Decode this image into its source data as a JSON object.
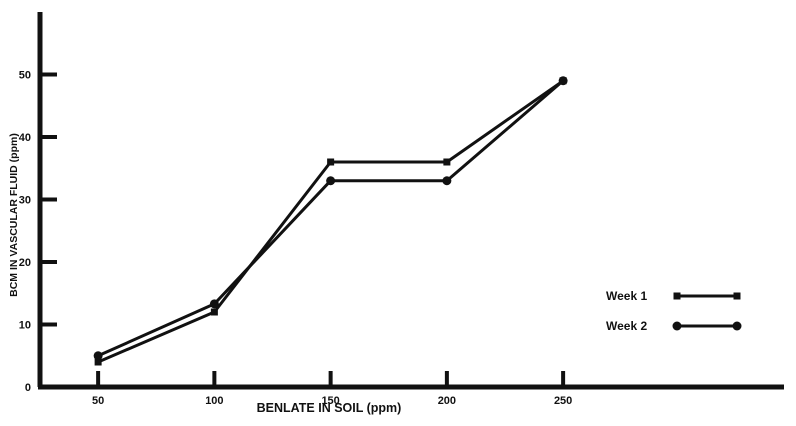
{
  "chart_data": {
    "type": "line",
    "xlabel": "BENLATE IN SOIL (ppm)",
    "ylabel": "BCM IN VASCULAR FLUID (ppm)",
    "x_ticks": [
      "50",
      "100",
      "150",
      "200",
      "250"
    ],
    "y_ticks": [
      "0",
      "10",
      "20",
      "30",
      "40",
      "50"
    ],
    "xlim": [
      25,
      345
    ],
    "ylim": [
      0,
      60
    ],
    "x": [
      50,
      100,
      150,
      200,
      250
    ],
    "series": [
      {
        "name": "Week 1",
        "marker": "square",
        "values": [
          4,
          12,
          36,
          36,
          49
        ]
      },
      {
        "name": "Week 2",
        "marker": "circle",
        "values": [
          5,
          13.3,
          33,
          33,
          49
        ]
      }
    ],
    "legend_position": "right",
    "grid": false,
    "colors": {
      "ink": "#111111",
      "background": "#ffffff"
    }
  }
}
